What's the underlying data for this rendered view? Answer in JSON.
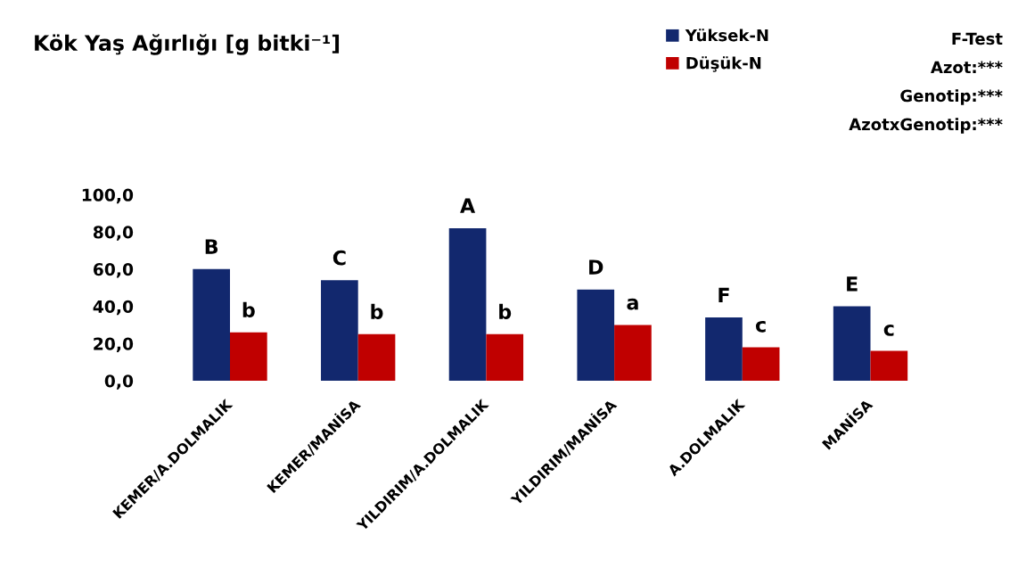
{
  "chart_data": {
    "type": "bar",
    "title": "Kök Yaş Ağırlığı [g bitki⁻¹]",
    "categories": [
      "KEMER/A.DOLMALIK",
      "KEMER/MANİSA",
      "YILDIRIM/A.DOLMALIK",
      "YILDIRIM/MANİSA",
      "A.DOLMALIK",
      "MANİSA"
    ],
    "series": [
      {
        "name": "Yüksek-N",
        "color": "#12286e",
        "values": [
          60,
          54,
          82,
          49,
          34,
          40
        ],
        "value_labels": [
          "B",
          "C",
          "A",
          "D",
          "F",
          "E"
        ]
      },
      {
        "name": "Düşük-N",
        "color": "#c00000",
        "values": [
          26,
          25,
          25,
          30,
          18,
          16
        ],
        "value_labels": [
          "b",
          "b",
          "b",
          "a",
          "c",
          "c"
        ]
      }
    ],
    "ylim": [
      0,
      100
    ],
    "yticks": [
      {
        "value": 0,
        "label": "0,0"
      },
      {
        "value": 20,
        "label": "20,0"
      },
      {
        "value": 40,
        "label": "40,0"
      },
      {
        "value": 60,
        "label": "60,0"
      },
      {
        "value": 80,
        "label": "80,0"
      },
      {
        "value": 100,
        "label": "100,0"
      }
    ],
    "legend": "top right",
    "annotations": [
      "F-Test",
      "Azot:***",
      "Genotip:***",
      "AzotxGenotip:***"
    ]
  }
}
